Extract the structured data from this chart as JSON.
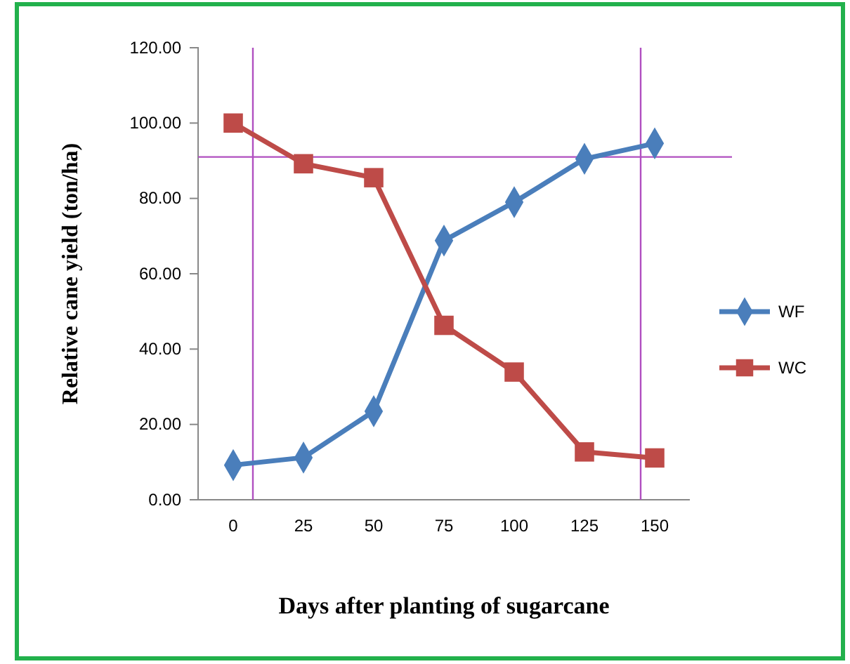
{
  "chart_data": {
    "type": "line",
    "xlabel": "Days after planting of sugarcane",
    "ylabel": "Relative cane yield (ton/ha)",
    "x": [
      0,
      25,
      50,
      75,
      100,
      125,
      150
    ],
    "xlim": [
      -12.5,
      162.5
    ],
    "xticks": [
      0,
      25,
      50,
      75,
      100,
      125,
      150
    ],
    "ylim": [
      0,
      120
    ],
    "yticks": [
      {
        "value": 0,
        "label": "0.00"
      },
      {
        "value": 20,
        "label": "20.00"
      },
      {
        "value": 40,
        "label": "40.00"
      },
      {
        "value": 60,
        "label": "60.00"
      },
      {
        "value": 80,
        "label": "80.00"
      },
      {
        "value": 100,
        "label": "100.00"
      },
      {
        "value": 120,
        "label": "120.00"
      }
    ],
    "series": [
      {
        "name": "WF",
        "color": "#4a7ebb",
        "marker": "diamond",
        "values": [
          9.2,
          11.2,
          23.5,
          68.8,
          79.0,
          90.5,
          94.6
        ]
      },
      {
        "name": "WC",
        "color": "#be4b48",
        "marker": "square",
        "values": [
          100.0,
          89.2,
          85.5,
          46.3,
          33.9,
          12.7,
          11.1
        ]
      }
    ],
    "ref_lines": [
      {
        "axis": "y",
        "value": 91,
        "color": "#b04fc0"
      },
      {
        "axis": "x",
        "value": 7,
        "color": "#b04fc0"
      },
      {
        "axis": "x",
        "value": 145,
        "color": "#b04fc0"
      }
    ],
    "legend": "right",
    "grid": false
  }
}
